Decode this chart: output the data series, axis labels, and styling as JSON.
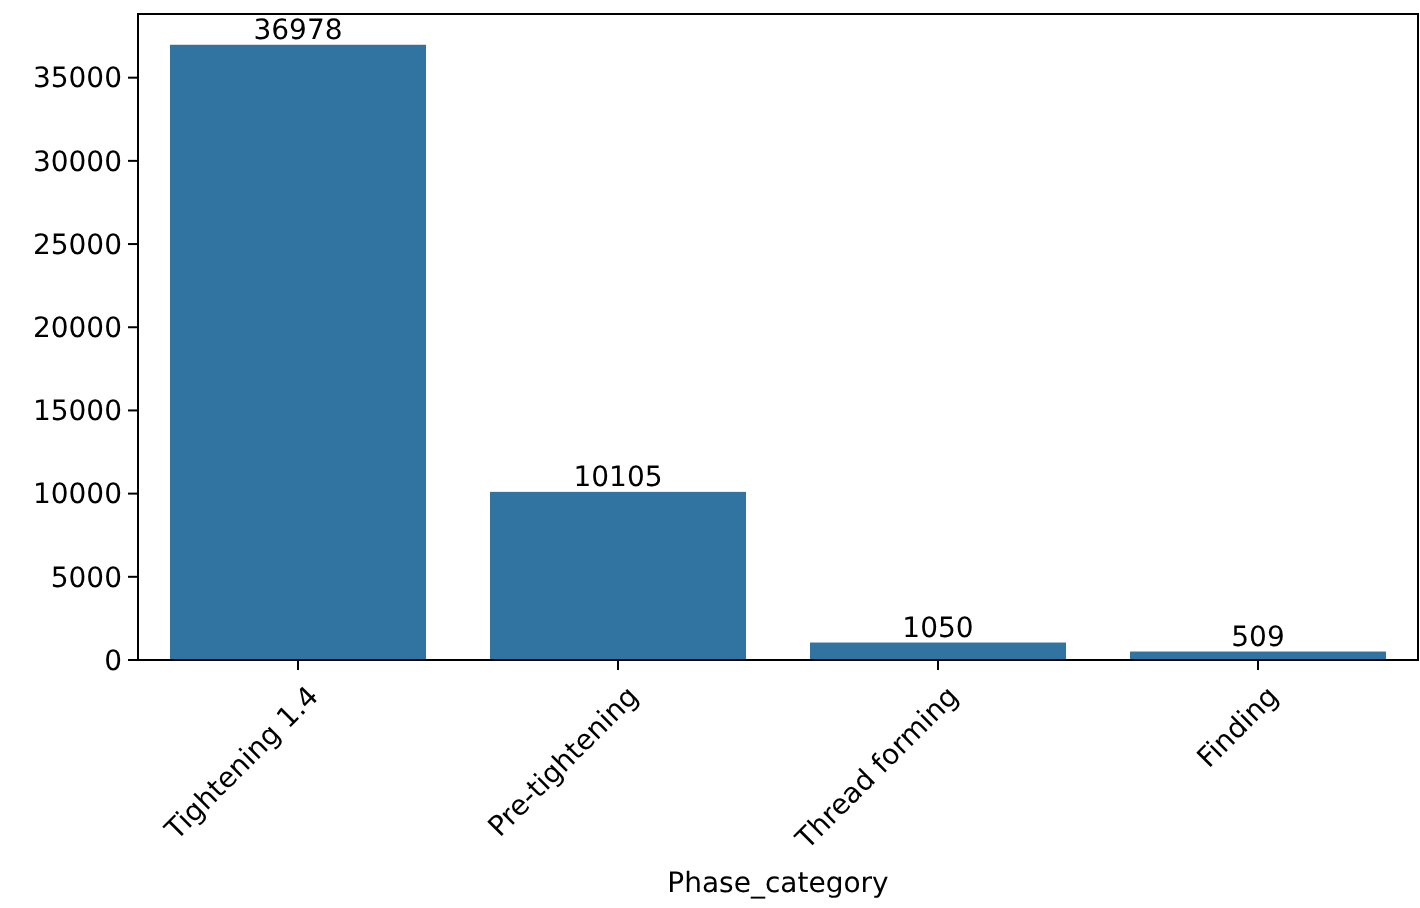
{
  "chart_data": {
    "type": "bar",
    "xlabel": "Phase_category",
    "categories": [
      "Tightening 1.4",
      "Pre-tightening",
      "Thread forming",
      "Finding"
    ],
    "values": [
      36978,
      10105,
      1050,
      509
    ],
    "color": "#3274a1",
    "ylim": [
      0,
      38827
    ],
    "yticks": [
      0,
      5000,
      10000,
      15000,
      20000,
      25000,
      30000,
      35000
    ],
    "grid": false,
    "data_labels": true
  }
}
